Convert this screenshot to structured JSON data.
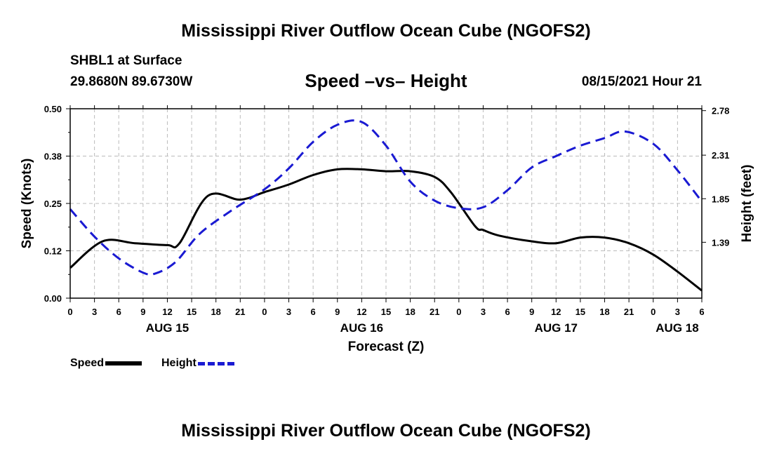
{
  "header": {
    "title": "Mississippi River Outflow Ocean Cube (NGOFS2)",
    "footer_title": "Mississippi River Outflow Ocean Cube (NGOFS2)",
    "station": "SHBL1 at Surface",
    "coords": "29.8680N  89.6730W",
    "subtitle": "Speed –vs– Height",
    "datetime": "08/15/2021 Hour 21"
  },
  "legend": {
    "speed": "Speed",
    "height": "Height"
  },
  "colors": {
    "speed": "#000000",
    "height": "#1a1ad2",
    "grid": "#bbbbbb"
  },
  "chart_data": {
    "type": "line",
    "xlabel": "Forecast (Z)",
    "ylabel": "Speed (Knots)",
    "ylabel_right": "Height (feet)",
    "xlim": [
      0,
      78
    ],
    "ylim": [
      0,
      0.5
    ],
    "ylim_right": [
      0.8,
      2.8
    ],
    "yticks": [
      "0.00",
      "0.12",
      "0.25",
      "0.38",
      "0.50"
    ],
    "yticks_right": [
      "1.39",
      "1.85",
      "2.31",
      "2.78"
    ],
    "yticks_right_values": [
      1.39,
      1.85,
      2.31,
      2.78
    ],
    "x_ticks": [
      0,
      3,
      6,
      9,
      12,
      15,
      18,
      21,
      24,
      27,
      30,
      33,
      36,
      39,
      42,
      45,
      48,
      51,
      54,
      57,
      60,
      63,
      66,
      69,
      72,
      75,
      78
    ],
    "x_tick_labels": [
      "0",
      "3",
      "6",
      "9",
      "12",
      "15",
      "18",
      "21",
      "0",
      "3",
      "6",
      "9",
      "12",
      "15",
      "18",
      "21",
      "0",
      "3",
      "6",
      "9",
      "12",
      "15",
      "18",
      "21",
      "0",
      "3",
      "6"
    ],
    "date_labels": [
      {
        "x": 12,
        "label": "AUG 15"
      },
      {
        "x": 36,
        "label": "AUG 16"
      },
      {
        "x": 60,
        "label": "AUG 17"
      },
      {
        "x": 78,
        "label": "AUG 18"
      }
    ],
    "series": [
      {
        "name": "Speed",
        "axis": "left",
        "x": [
          0,
          4,
          8,
          12,
          13.5,
          17,
          21,
          24,
          27,
          30,
          33,
          36,
          39,
          42,
          45,
          47,
          50,
          51,
          53,
          57,
          60,
          63,
          66,
          69,
          72,
          75,
          78
        ],
        "values": [
          0.08,
          0.15,
          0.145,
          0.14,
          0.145,
          0.27,
          0.26,
          0.28,
          0.3,
          0.325,
          0.34,
          0.34,
          0.335,
          0.335,
          0.32,
          0.28,
          0.19,
          0.18,
          0.165,
          0.15,
          0.145,
          0.16,
          0.16,
          0.145,
          0.115,
          0.07,
          0.02
        ]
      },
      {
        "name": "Height",
        "axis": "right",
        "x": [
          0,
          3,
          6,
          9,
          10.5,
          13,
          16,
          20,
          24,
          27,
          30,
          33,
          36,
          39,
          42,
          45,
          48,
          51,
          54,
          57,
          60,
          63,
          66,
          68.5,
          72,
          75,
          78
        ],
        "values": [
          1.74,
          1.45,
          1.22,
          1.07,
          1.06,
          1.18,
          1.48,
          1.73,
          1.95,
          2.17,
          2.45,
          2.63,
          2.66,
          2.41,
          2.03,
          1.83,
          1.75,
          1.76,
          1.94,
          2.18,
          2.3,
          2.41,
          2.49,
          2.56,
          2.43,
          2.15,
          1.82
        ]
      }
    ]
  }
}
